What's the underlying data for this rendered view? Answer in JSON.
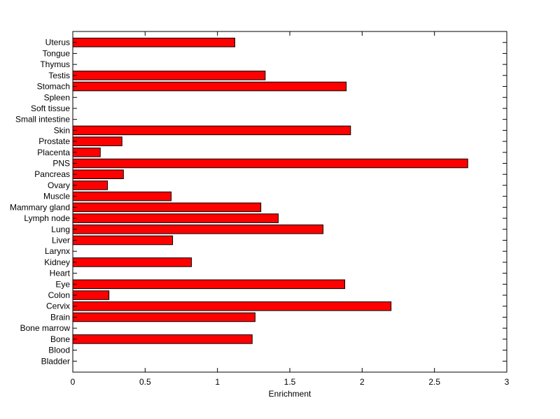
{
  "chart_data": {
    "type": "bar",
    "orientation": "horizontal",
    "categories": [
      "Bladder",
      "Blood",
      "Bone",
      "Bone marrow",
      "Brain",
      "Cervix",
      "Colon",
      "Eye",
      "Heart",
      "Kidney",
      "Larynx",
      "Liver",
      "Lung",
      "Lymph node",
      "Mammary gland",
      "Muscle",
      "Ovary",
      "Pancreas",
      "PNS",
      "Placenta",
      "Prostate",
      "Skin",
      "Small intestine",
      "Soft tissue",
      "Spleen",
      "Stomach",
      "Testis",
      "Thymus",
      "Tongue",
      "Uterus"
    ],
    "values": [
      0,
      0,
      1.24,
      0,
      1.26,
      2.2,
      0.25,
      1.88,
      0,
      0.82,
      0,
      0.69,
      1.73,
      1.42,
      1.3,
      0.68,
      0.24,
      0.35,
      2.73,
      0.19,
      0.34,
      1.92,
      0,
      0,
      0,
      1.89,
      1.33,
      0,
      0,
      1.12
    ],
    "xlabel": "Enrichment",
    "ylabel": "",
    "xlim": [
      0,
      3
    ],
    "xticks": [
      0,
      0.5,
      1,
      1.5,
      2,
      2.5,
      3
    ],
    "xtick_labels": [
      "0",
      "0.5",
      "1",
      "1.5",
      "2",
      "2.5",
      "3"
    ],
    "bar_color": "#ff0000",
    "grid": false
  }
}
